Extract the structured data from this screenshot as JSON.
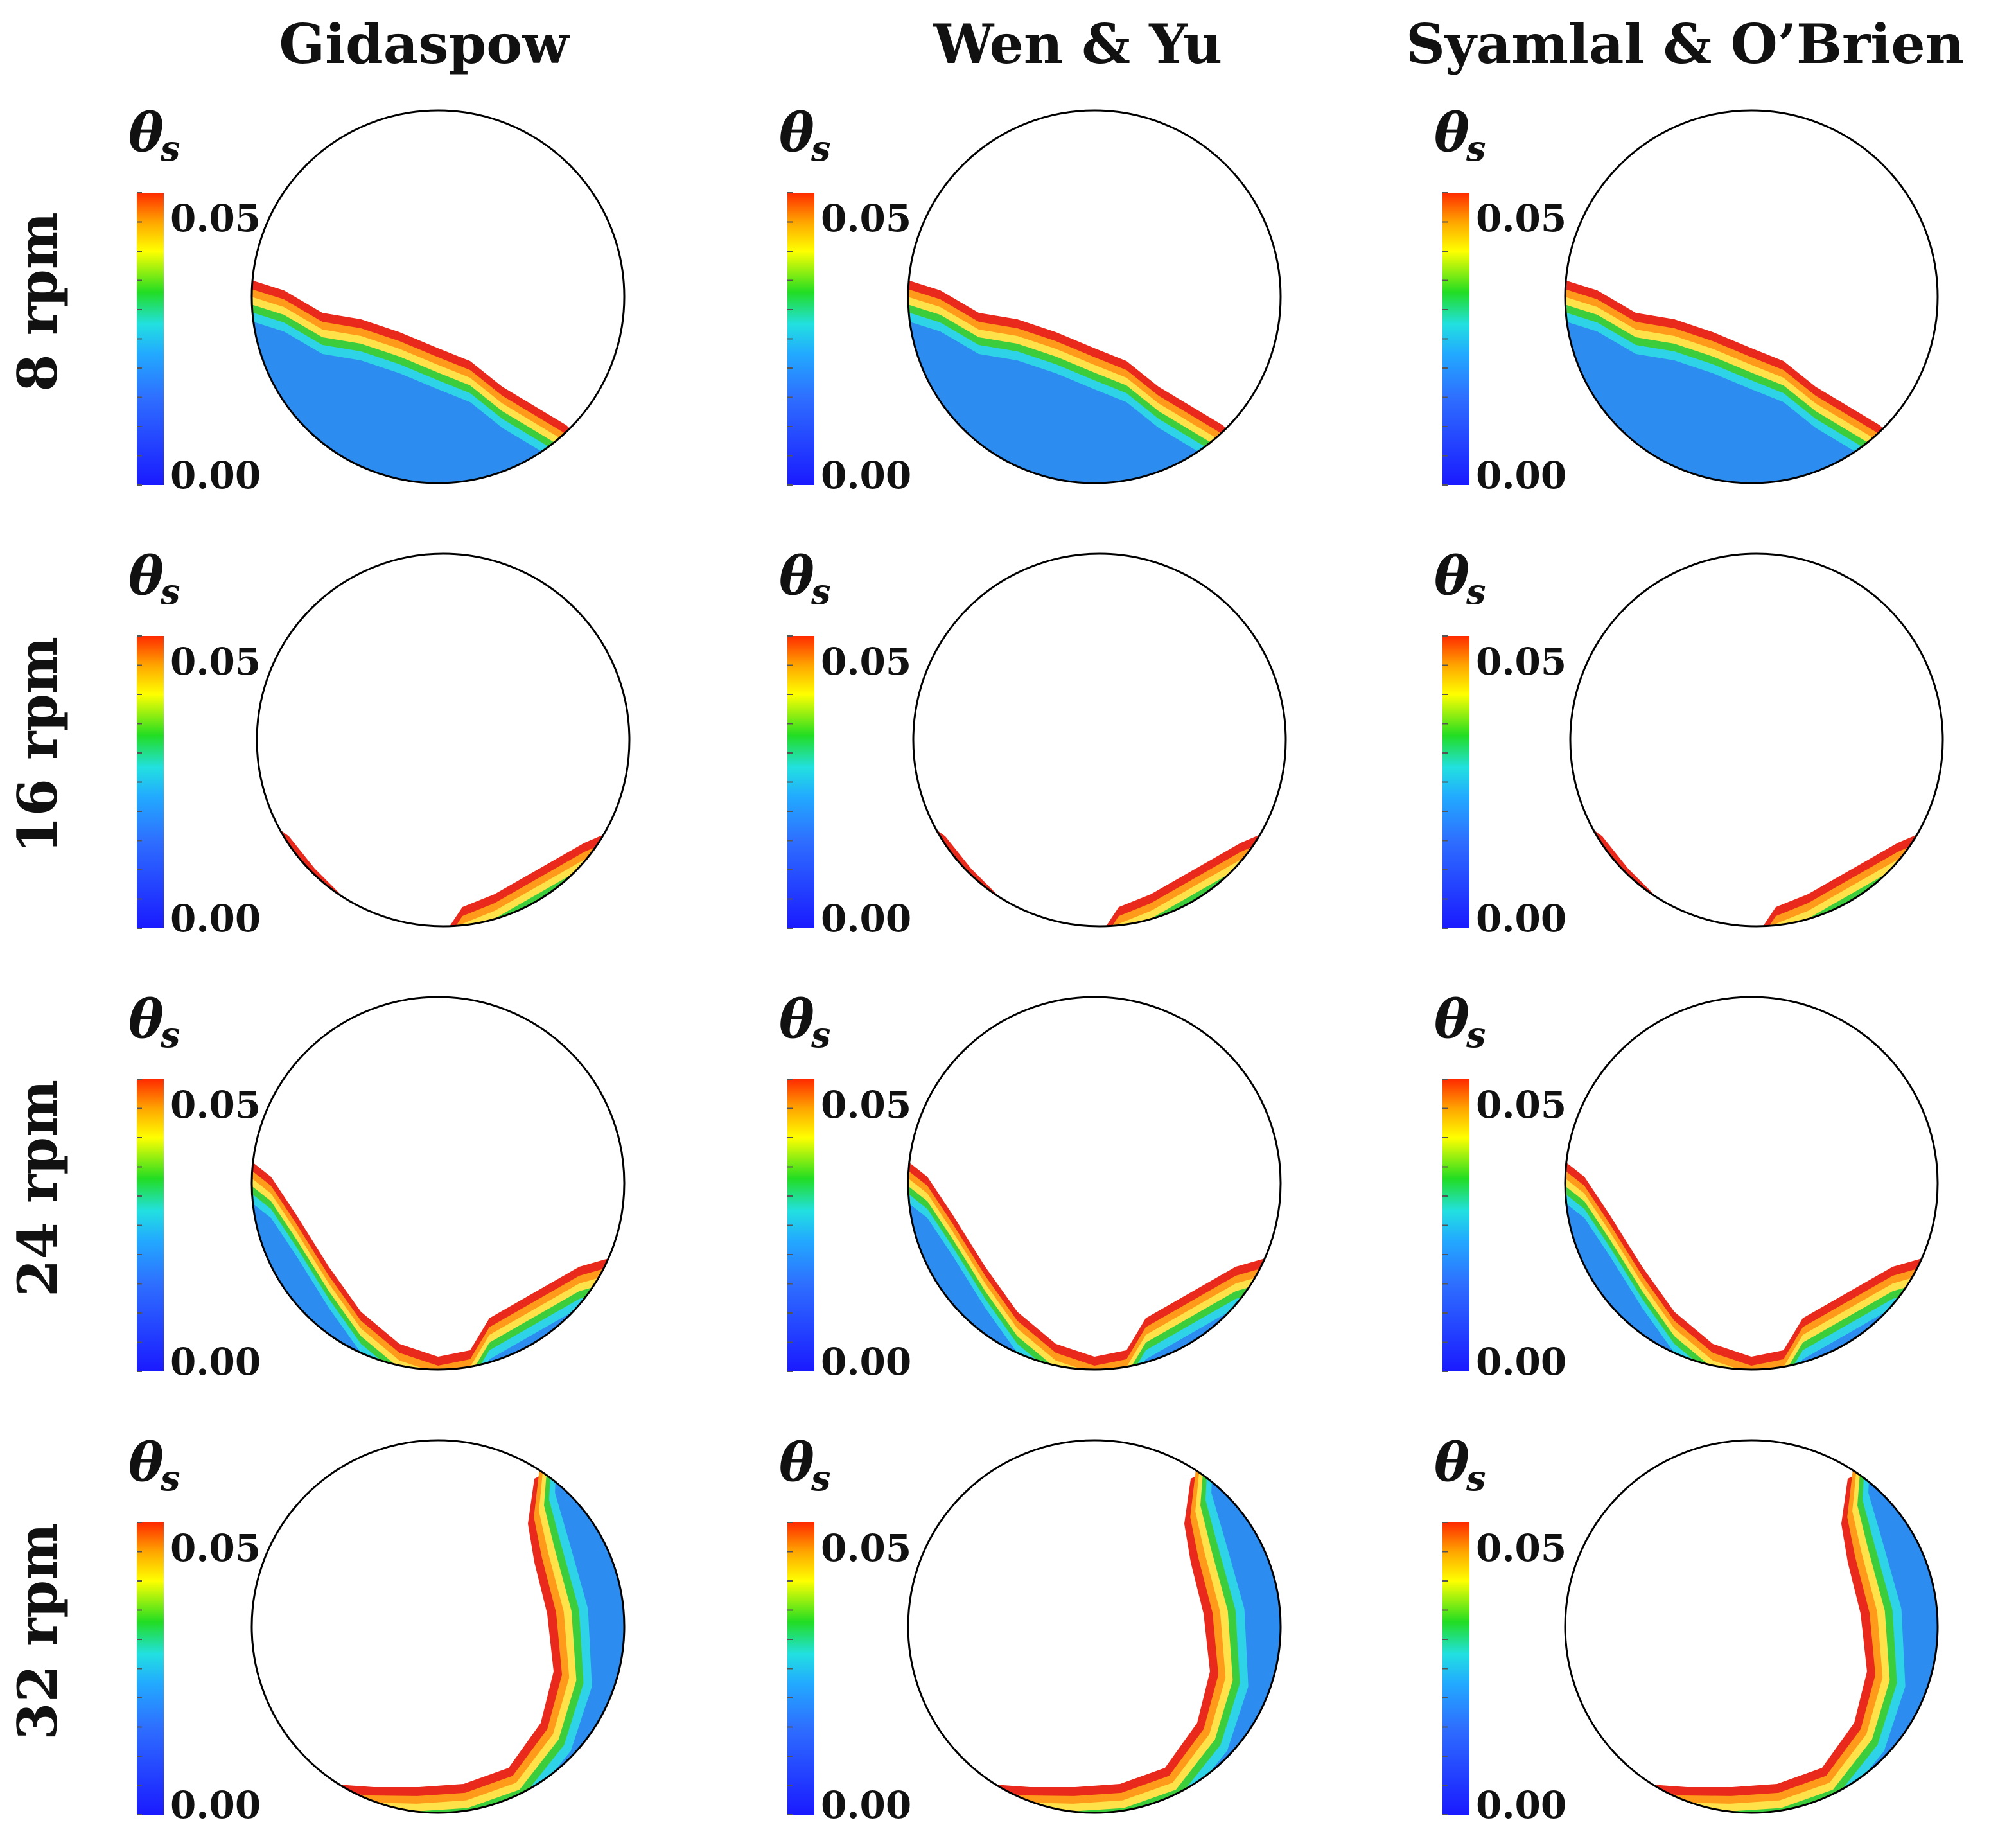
{
  "columns": [
    "Gidaspow",
    "Wen & Yu",
    "Syamlal & O’Brien"
  ],
  "rows": [
    "8 rpm",
    "16 rpm",
    "24 rpm",
    "32 rpm"
  ],
  "colorbar": {
    "symbol": "θ",
    "subscript": "s",
    "max_label": "0.05",
    "min_label": "0.00",
    "stops": [
      "#1a1aff",
      "#2e6fff",
      "#22aaff",
      "#22e0e0",
      "#22dd22",
      "#ffff00",
      "#ffa500",
      "#ff2a00"
    ]
  },
  "colors": {
    "outline": "#000000",
    "bed_fill": "#3a74e6",
    "band_red": "#e8291c",
    "band_orange": "#ff9a1a",
    "band_yellow": "#ffe14a",
    "band_green": "#3ccd3c",
    "band_cyan": "#2fd3e8",
    "band_blue": "#2c8cf0"
  }
}
